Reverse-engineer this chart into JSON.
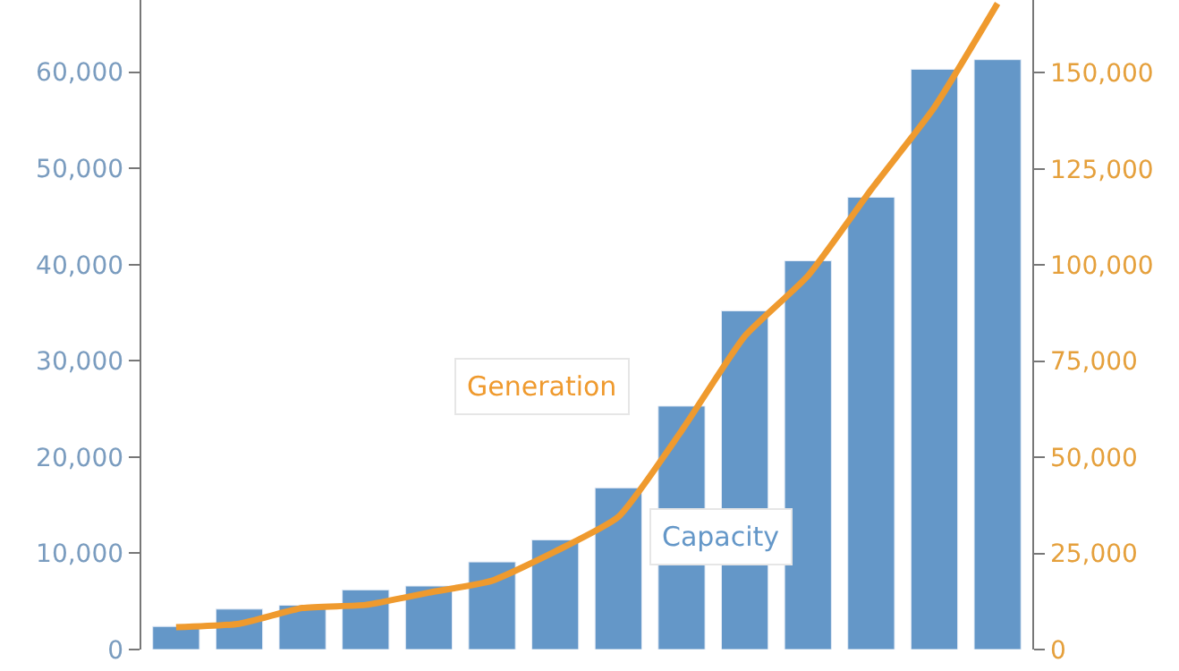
{
  "chart_data": {
    "type": "bar",
    "categories": [
      null,
      null,
      null,
      null,
      null,
      null,
      null,
      null,
      null,
      null,
      null,
      null,
      null,
      null
    ],
    "series": [
      {
        "name": "Capacity",
        "color": "#6497c8",
        "values": [
          2400,
          4200,
          4600,
          6200,
          6600,
          9100,
          11400,
          16800,
          25300,
          35200,
          40400,
          47000,
          60300,
          61300
        ]
      },
      {
        "name": "Generation",
        "type": "line",
        "axis": "y2",
        "color": "#ef9a2e",
        "values": [
          5800,
          6700,
          10800,
          11600,
          14800,
          17900,
          25500,
          34500,
          56900,
          81500,
          97200,
          119600,
          141000,
          168000
        ]
      }
    ],
    "ylim": [
      0,
      67500
    ],
    "yticks": [
      0,
      {
        "value": 10000,
        "label": "10,000"
      },
      {
        "value": 20000,
        "label": "20,000"
      },
      {
        "value": 30000,
        "label": "30,000"
      },
      {
        "value": 40000,
        "label": "40,000"
      },
      {
        "value": 50000,
        "label": "50,000"
      },
      {
        "value": 60000,
        "label": "60,000"
      }
    ],
    "y2lim": [
      0,
      168900
    ],
    "y2ticks": [
      0,
      {
        "value": 25000,
        "label": "25,000"
      },
      {
        "value": 50000,
        "label": "50,000"
      },
      {
        "value": 75000,
        "label": "75,000"
      },
      {
        "value": 100000,
        "label": "100,000"
      },
      {
        "value": 125000,
        "label": "125,000"
      },
      {
        "value": 150000,
        "label": "150,000"
      }
    ],
    "tick_labels": "y",
    "legend": false,
    "marker": "none",
    "line_style": "solid"
  }
}
